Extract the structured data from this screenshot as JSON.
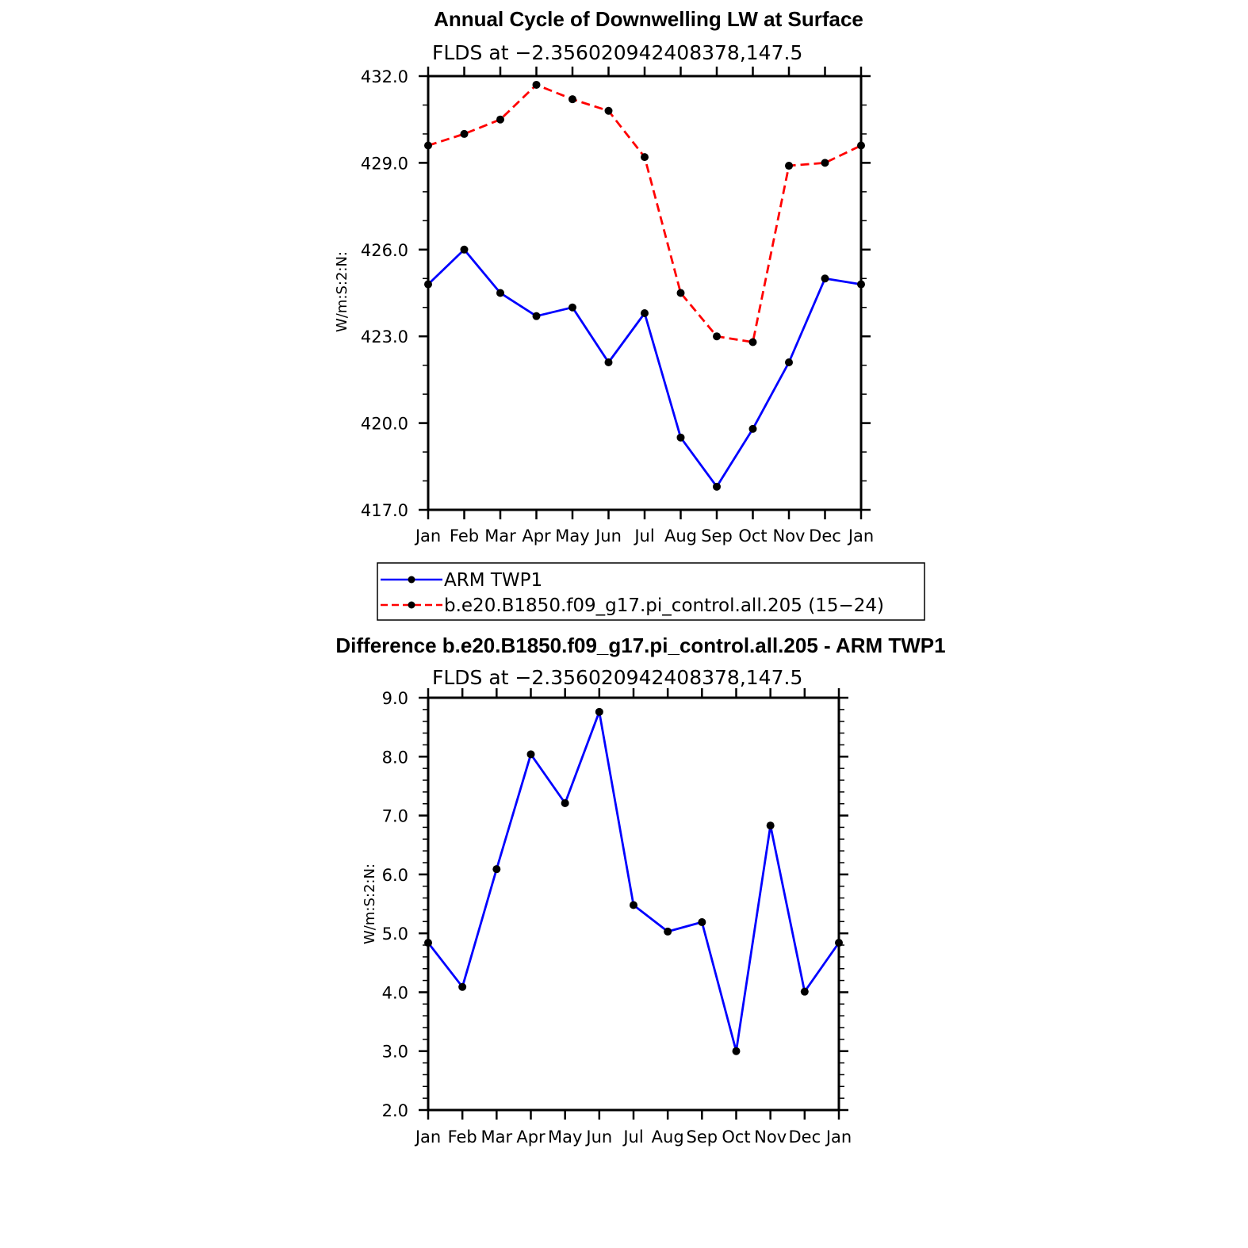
{
  "chart_data": [
    {
      "type": "line",
      "title": "Annual Cycle of Downwelling LW at Surface",
      "subtitle": "FLDS at −2.356020942408378,147.5",
      "ylabel": "W/m:S:2:N:",
      "xlabel": "",
      "categories": [
        "Jan",
        "Feb",
        "Mar",
        "Apr",
        "May",
        "Jun",
        "Jul",
        "Aug",
        "Sep",
        "Oct",
        "Nov",
        "Dec",
        "Jan"
      ],
      "ylim": [
        417.0,
        432.0
      ],
      "yticks": [
        "417.0",
        "420.0",
        "423.0",
        "426.0",
        "429.0",
        "432.0"
      ],
      "grid": false,
      "legend": "bottom",
      "series": [
        {
          "name": "ARM TWP1",
          "color": "#0000ff",
          "dash": "solid",
          "values": [
            424.8,
            426.0,
            424.5,
            423.7,
            424.0,
            422.1,
            423.8,
            419.5,
            417.8,
            419.8,
            422.1,
            425.0,
            424.8
          ]
        },
        {
          "name": "b.e20.B1850.f09_g17.pi_control.all.205 (15−24)",
          "color": "#ff0000",
          "dash": "dashed",
          "values": [
            429.6,
            430.0,
            430.5,
            431.7,
            431.2,
            430.8,
            429.2,
            424.5,
            423.0,
            422.8,
            428.9,
            429.0,
            429.6
          ]
        }
      ]
    },
    {
      "type": "line",
      "title": "Difference b.e20.B1850.f09_g17.pi_control.all.205 - ARM TWP1",
      "subtitle": "FLDS at −2.356020942408378,147.5",
      "ylabel": "W/m:S:2:N:",
      "xlabel": "",
      "categories": [
        "Jan",
        "Feb",
        "Mar",
        "Apr",
        "May",
        "Jun",
        "Jul",
        "Aug",
        "Sep",
        "Oct",
        "Nov",
        "Dec",
        "Jan"
      ],
      "ylim": [
        2.0,
        9.0
      ],
      "yticks": [
        "2.0",
        "3.0",
        "4.0",
        "5.0",
        "6.0",
        "7.0",
        "8.0",
        "9.0"
      ],
      "grid": false,
      "legend": "none",
      "series": [
        {
          "color": "#0000ff",
          "dash": "solid",
          "values": [
            4.84,
            4.09,
            6.09,
            8.04,
            7.21,
            8.76,
            5.48,
            5.03,
            5.19,
            3.0,
            6.83,
            4.01,
            4.84
          ]
        }
      ]
    }
  ]
}
